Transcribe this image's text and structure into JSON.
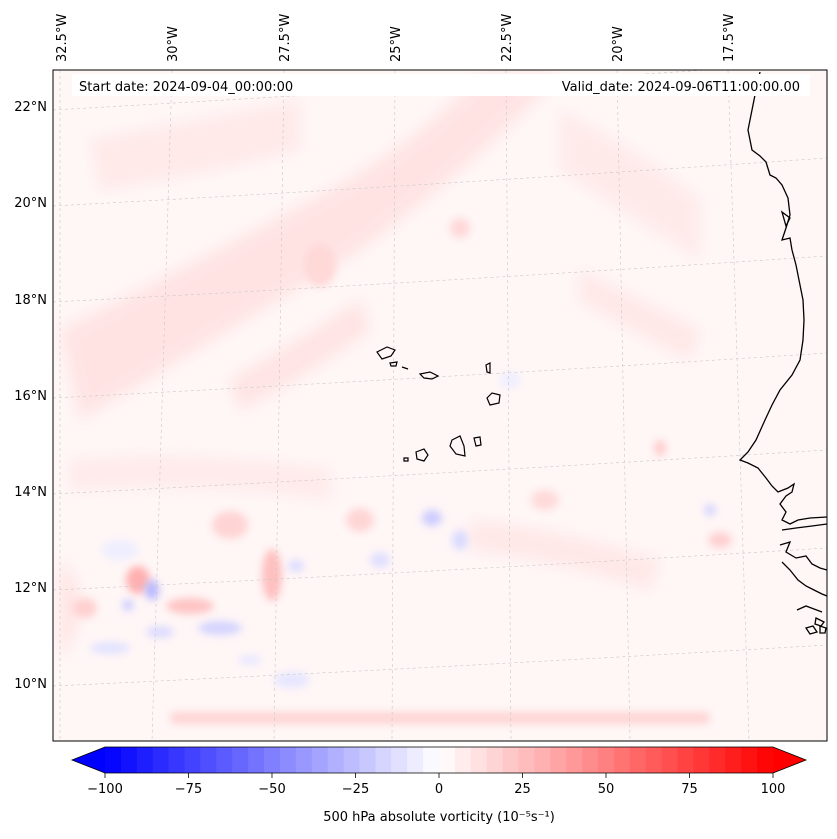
{
  "header": {
    "start_date": "Start date: 2024-09-04_00:00:00",
    "valid_date": "Valid_date: 2024-09-06T11:00:00.00"
  },
  "map": {
    "lon_labels": [
      "32.5°W",
      "30°W",
      "27.5°W",
      "25°W",
      "22.5°W",
      "20°W",
      "17.5°W"
    ],
    "lat_labels": [
      "22°N",
      "20°N",
      "18°N",
      "16°N",
      "14°N",
      "12°N",
      "10°N"
    ],
    "features": [
      "Cape Verde islands",
      "West African coastline"
    ]
  },
  "colorbar": {
    "label": "500 hPa absolute vorticity",
    "units": "(10⁻⁵s⁻¹)",
    "min": -100,
    "max": 100,
    "ticks": [
      "−100",
      "−75",
      "−50",
      "−25",
      "0",
      "25",
      "50",
      "75",
      "100"
    ],
    "levels": 42,
    "colormap": "bwr",
    "extend": "both",
    "colors": {
      "negative": "#0000ff",
      "neutral": "#ffffff",
      "positive": "#ff0000"
    }
  }
}
